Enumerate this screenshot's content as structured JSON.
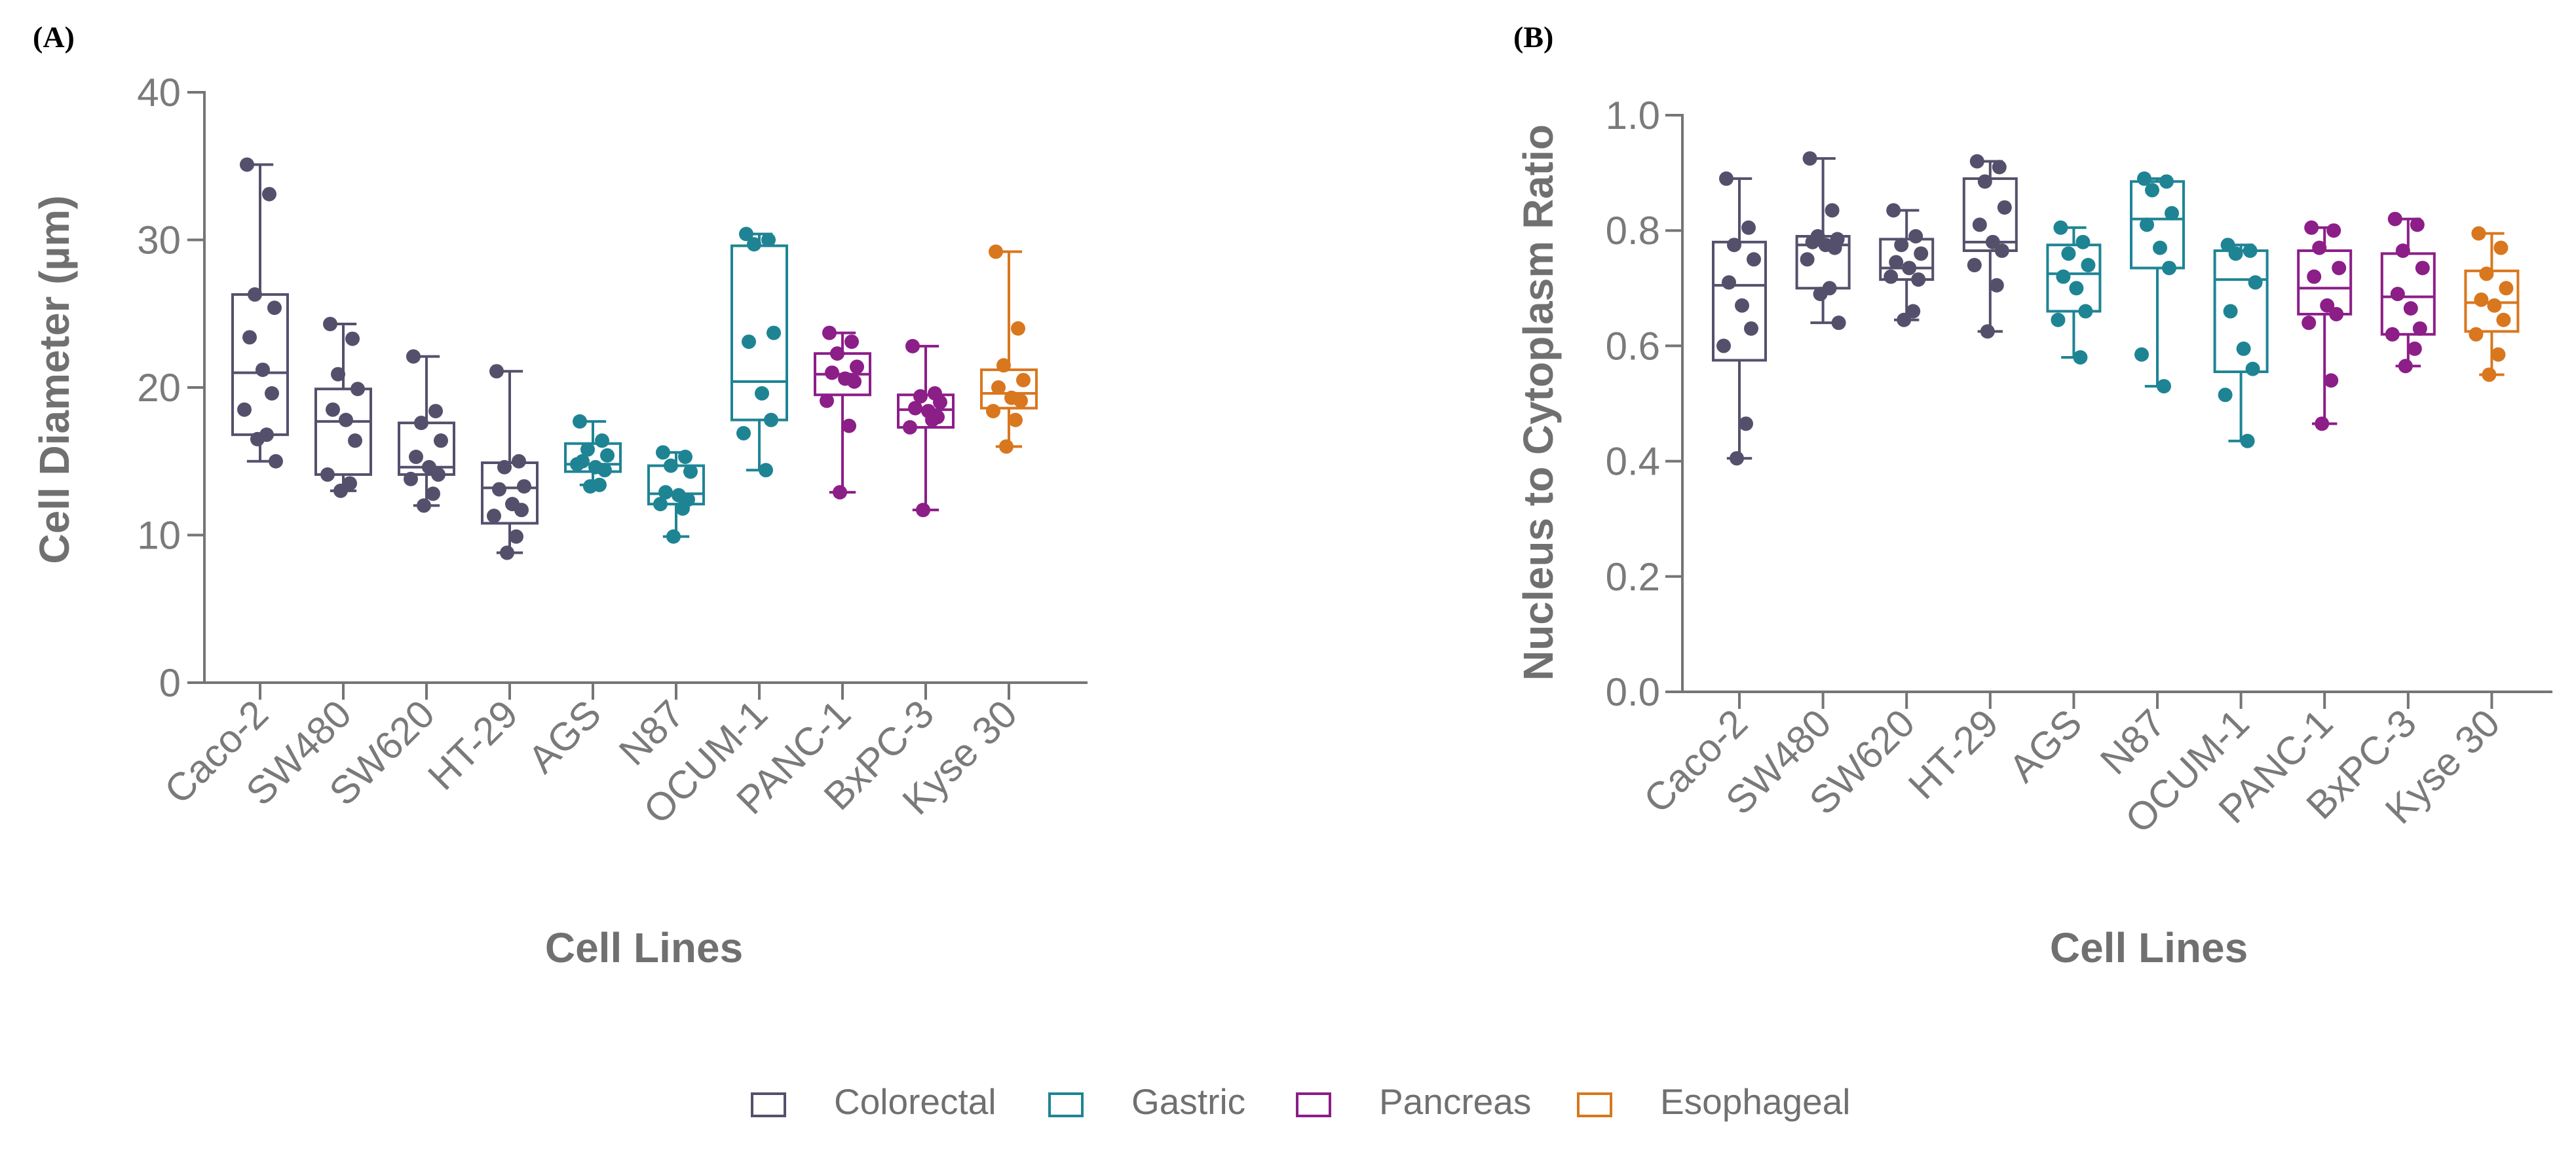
{
  "chart_data": [
    {
      "panel_label": "(A)",
      "type": "box",
      "title": "",
      "xlabel": "Cell Lines",
      "ylabel": "Cell Diameter (µm)",
      "ylim": [
        0,
        40
      ],
      "yticks": [
        0,
        10,
        20,
        30,
        40
      ],
      "ytick_labels": [
        "0",
        "10",
        "20",
        "30",
        "40"
      ],
      "categories": [
        "Caco-2",
        "SW480",
        "SW620",
        "HT-29",
        "AGS",
        "N87",
        "OCUM-1",
        "PANC-1",
        "BxPC-3",
        "Kyse 30"
      ],
      "groups": [
        "Colorectal",
        "Colorectal",
        "Colorectal",
        "Colorectal",
        "Gastric",
        "Gastric",
        "Gastric",
        "Pancreas",
        "Pancreas",
        "Esophageal"
      ],
      "boxes": [
        {
          "min": 15.0,
          "q1": 16.8,
          "median": 21.0,
          "q3": 26.3,
          "max": 35.1
        },
        {
          "min": 13.0,
          "q1": 14.1,
          "median": 17.7,
          "q3": 19.9,
          "max": 24.3
        },
        {
          "min": 12.0,
          "q1": 14.1,
          "median": 14.6,
          "q3": 17.6,
          "max": 22.1
        },
        {
          "min": 8.8,
          "q1": 10.8,
          "median": 13.2,
          "q3": 14.9,
          "max": 21.1
        },
        {
          "min": 13.4,
          "q1": 14.3,
          "median": 14.8,
          "q3": 16.2,
          "max": 17.7
        },
        {
          "min": 9.9,
          "q1": 12.1,
          "median": 12.8,
          "q3": 14.7,
          "max": 15.6
        },
        {
          "min": 14.4,
          "q1": 17.8,
          "median": 20.4,
          "q3": 29.6,
          "max": 30.4
        },
        {
          "min": 12.9,
          "q1": 19.5,
          "median": 20.9,
          "q3": 22.3,
          "max": 23.7
        },
        {
          "min": 11.7,
          "q1": 17.3,
          "median": 18.5,
          "q3": 19.5,
          "max": 22.8
        },
        {
          "min": 16.0,
          "q1": 18.6,
          "median": 19.6,
          "q3": 21.2,
          "max": 29.2
        }
      ],
      "points": [
        [
          35.1,
          33.1,
          26.3,
          25.4,
          23.4,
          21.2,
          19.6,
          18.5,
          16.8,
          16.5,
          15.0
        ],
        [
          24.3,
          23.3,
          20.9,
          19.9,
          18.5,
          17.8,
          16.4,
          14.1,
          13.5,
          13.0
        ],
        [
          22.1,
          18.4,
          17.6,
          16.4,
          15.3,
          14.6,
          14.1,
          13.8,
          12.8,
          12.0
        ],
        [
          21.1,
          15.0,
          14.6,
          13.3,
          13.1,
          12.1,
          11.7,
          11.3,
          9.9,
          8.8
        ],
        [
          17.7,
          16.4,
          15.8,
          15.4,
          15.0,
          14.6,
          14.4,
          14.8,
          13.4,
          13.3
        ],
        [
          15.6,
          15.3,
          14.7,
          14.3,
          12.9,
          12.7,
          12.4,
          12.1,
          11.8,
          9.9
        ],
        [
          30.4,
          30.0,
          29.7,
          23.7,
          23.1,
          19.6,
          17.8,
          16.9,
          14.4
        ],
        [
          23.7,
          23.1,
          22.3,
          21.4,
          21.0,
          20.6,
          20.4,
          19.1,
          17.4,
          12.9
        ],
        [
          22.8,
          19.6,
          19.4,
          19.0,
          18.6,
          18.4,
          18.0,
          17.3,
          17.8,
          11.7
        ],
        [
          29.2,
          24.0,
          21.5,
          20.5,
          20.0,
          19.3,
          19.1,
          18.4,
          17.8,
          16.0
        ]
      ]
    },
    {
      "panel_label": "(B)",
      "type": "box",
      "title": "",
      "xlabel": "Cell Lines",
      "ylabel": "Nucleus to Cytoplasm Ratio",
      "ylim": [
        0,
        1
      ],
      "yticks": [
        0,
        0.2,
        0.4,
        0.6,
        0.8,
        1.0
      ],
      "ytick_labels": [
        "0.0",
        "0.2",
        "0.4",
        "0.6",
        "0.8",
        "1.0"
      ],
      "categories": [
        "Caco-2",
        "SW480",
        "SW620",
        "HT-29",
        "AGS",
        "N87",
        "OCUM-1",
        "PANC-1",
        "BxPC-3",
        "Kyse 30"
      ],
      "groups": [
        "Colorectal",
        "Colorectal",
        "Colorectal",
        "Colorectal",
        "Gastric",
        "Gastric",
        "Gastric",
        "Pancreas",
        "Pancreas",
        "Esophageal"
      ],
      "boxes": [
        {
          "min": 0.405,
          "q1": 0.575,
          "median": 0.705,
          "q3": 0.78,
          "max": 0.89
        },
        {
          "min": 0.64,
          "q1": 0.7,
          "median": 0.775,
          "q3": 0.79,
          "max": 0.925
        },
        {
          "min": 0.645,
          "q1": 0.715,
          "median": 0.735,
          "q3": 0.785,
          "max": 0.835
        },
        {
          "min": 0.625,
          "q1": 0.765,
          "median": 0.78,
          "q3": 0.89,
          "max": 0.92
        },
        {
          "min": 0.58,
          "q1": 0.66,
          "median": 0.725,
          "q3": 0.775,
          "max": 0.805
        },
        {
          "min": 0.53,
          "q1": 0.735,
          "median": 0.82,
          "q3": 0.885,
          "max": 0.89
        },
        {
          "min": 0.435,
          "q1": 0.555,
          "median": 0.715,
          "q3": 0.765,
          "max": 0.775
        },
        {
          "min": 0.465,
          "q1": 0.655,
          "median": 0.7,
          "q3": 0.765,
          "max": 0.805
        },
        {
          "min": 0.565,
          "q1": 0.62,
          "median": 0.685,
          "q3": 0.76,
          "max": 0.82
        },
        {
          "min": 0.55,
          "q1": 0.625,
          "median": 0.675,
          "q3": 0.73,
          "max": 0.795
        }
      ],
      "points": [
        [
          0.89,
          0.805,
          0.775,
          0.75,
          0.71,
          0.67,
          0.63,
          0.6,
          0.465,
          0.405
        ],
        [
          0.925,
          0.835,
          0.79,
          0.785,
          0.78,
          0.775,
          0.77,
          0.75,
          0.7,
          0.69,
          0.64
        ],
        [
          0.835,
          0.79,
          0.775,
          0.76,
          0.745,
          0.735,
          0.715,
          0.72,
          0.66,
          0.645
        ],
        [
          0.92,
          0.91,
          0.885,
          0.84,
          0.81,
          0.78,
          0.765,
          0.74,
          0.705,
          0.625
        ],
        [
          0.805,
          0.78,
          0.76,
          0.74,
          0.72,
          0.7,
          0.66,
          0.645,
          0.58
        ],
        [
          0.89,
          0.885,
          0.87,
          0.83,
          0.81,
          0.77,
          0.735,
          0.585,
          0.53
        ],
        [
          0.775,
          0.765,
          0.76,
          0.71,
          0.66,
          0.595,
          0.56,
          0.515,
          0.435
        ],
        [
          0.805,
          0.8,
          0.77,
          0.735,
          0.72,
          0.67,
          0.655,
          0.64,
          0.54,
          0.465
        ],
        [
          0.82,
          0.81,
          0.765,
          0.735,
          0.69,
          0.665,
          0.63,
          0.62,
          0.595,
          0.565
        ],
        [
          0.795,
          0.77,
          0.725,
          0.7,
          0.68,
          0.67,
          0.645,
          0.62,
          0.585,
          0.55
        ]
      ]
    }
  ],
  "legend": {
    "position": "bottom-center",
    "items": [
      {
        "label": "Colorectal",
        "color": "#54506c"
      },
      {
        "label": "Gastric",
        "color": "#1e8494"
      },
      {
        "label": "Pancreas",
        "color": "#8c1e88"
      },
      {
        "label": "Esophageal",
        "color": "#d9771f"
      }
    ]
  },
  "colors": {
    "axis": "#757575",
    "tick_text": "#7a7a7a",
    "label_text": "#707070"
  }
}
